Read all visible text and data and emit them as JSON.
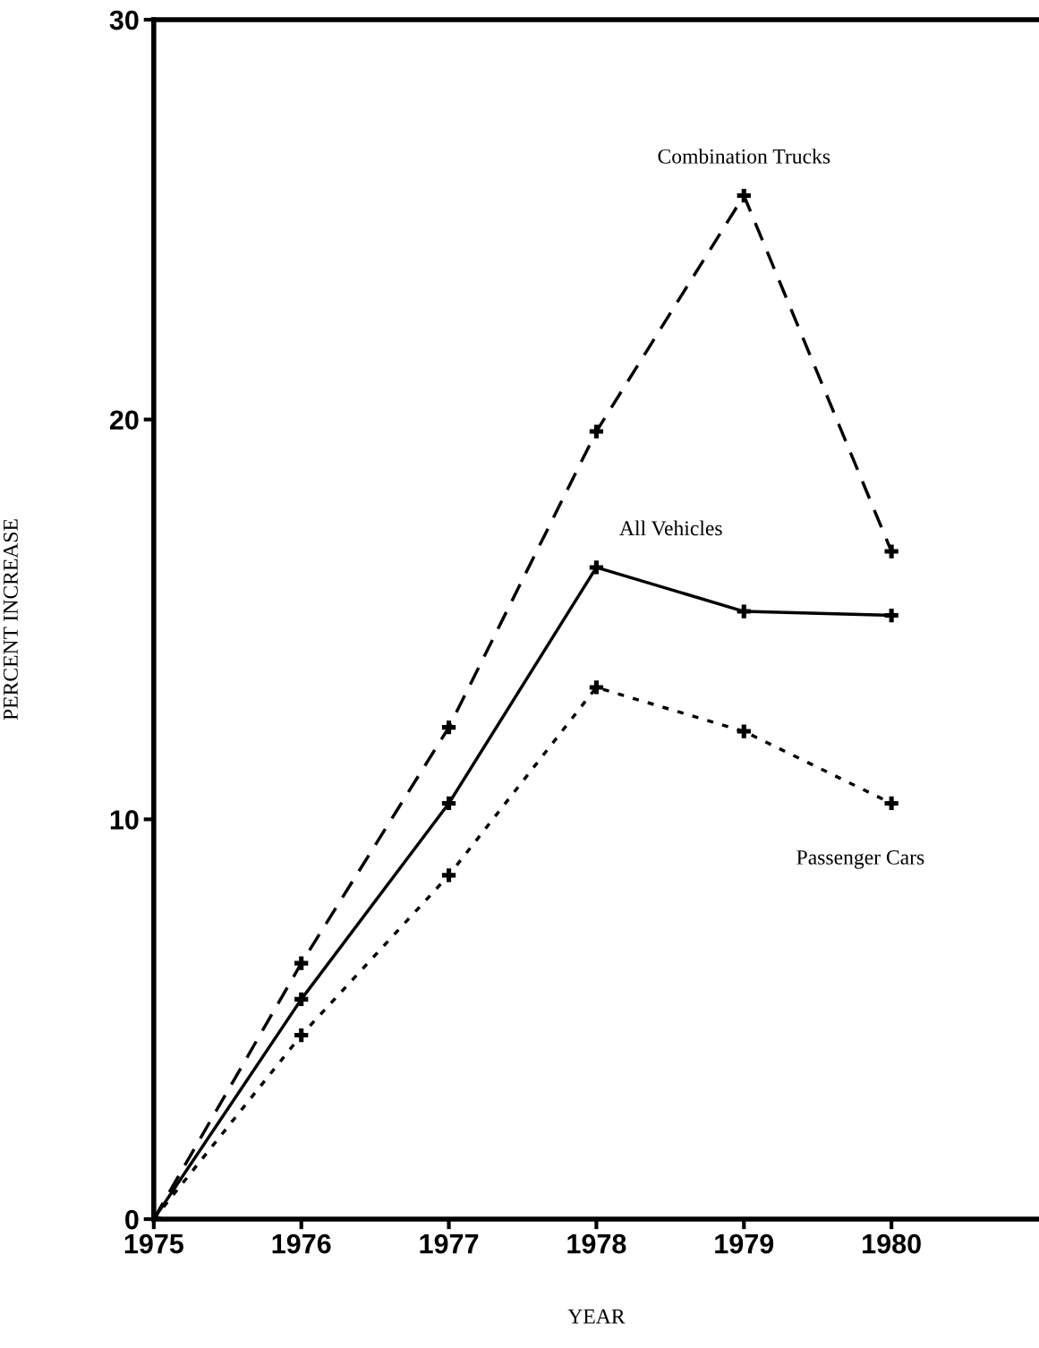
{
  "chart_data": {
    "type": "line",
    "xlabel": "YEAR",
    "ylabel": "PERCENT INCREASE",
    "x": [
      1975,
      1976,
      1977,
      1978,
      1979,
      1980
    ],
    "series": [
      {
        "name": "Combination Trucks",
        "color": "#000000",
        "line_style": "dashed",
        "values": [
          0,
          6.4,
          12.3,
          19.7,
          25.6,
          16.7
        ]
      },
      {
        "name": "All Vehicles",
        "color": "#000000",
        "line_style": "solid",
        "values": [
          0,
          5.5,
          10.4,
          16.3,
          15.2,
          15.1
        ]
      },
      {
        "name": "Passenger Cars",
        "color": "#000000",
        "line_style": "dotted",
        "values": [
          0,
          4.6,
          8.6,
          13.3,
          12.2,
          10.4
        ]
      }
    ],
    "marker": "cross",
    "xlim": [
      1975,
      1981
    ],
    "ylim": [
      0,
      30
    ],
    "xticks": [
      1975,
      1976,
      1977,
      1978,
      1979,
      1980
    ],
    "yticks": [
      0,
      10,
      20,
      30
    ],
    "grid": false,
    "legend": false
  }
}
